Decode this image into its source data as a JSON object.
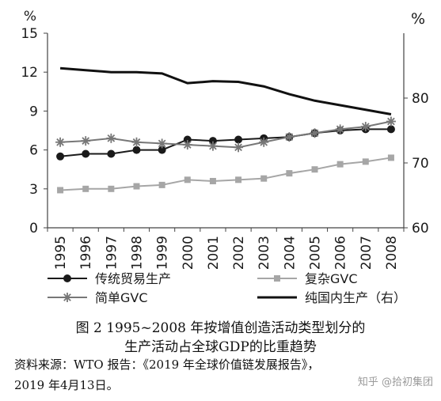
{
  "chart_data": {
    "type": "line",
    "title": "",
    "x": [
      "1995",
      "1996",
      "1997",
      "1998",
      "1999",
      "2000",
      "2001",
      "2002",
      "2003",
      "2004",
      "2005",
      "2006",
      "2007",
      "2008"
    ],
    "left_axis": {
      "unit": "%",
      "ylim": [
        0,
        15
      ],
      "ticks": [
        "0",
        "3",
        "6",
        "9",
        "12",
        "15"
      ]
    },
    "right_axis": {
      "unit": "%",
      "ylim": [
        60,
        90
      ],
      "ticks": [
        "60",
        "70",
        "80"
      ]
    },
    "series": [
      {
        "name": "传统贸易生产",
        "axis": "left",
        "marker": "circle",
        "color": "#1a1a1a",
        "values": [
          5.5,
          5.7,
          5.7,
          6.0,
          6.0,
          6.8,
          6.7,
          6.8,
          6.9,
          7.0,
          7.3,
          7.5,
          7.6,
          7.6
        ]
      },
      {
        "name": "复杂GVC",
        "axis": "left",
        "marker": "square",
        "color": "#a6a6a6",
        "values": [
          2.9,
          3.0,
          3.0,
          3.2,
          3.3,
          3.7,
          3.6,
          3.7,
          3.8,
          4.2,
          4.5,
          4.9,
          5.1,
          5.4
        ]
      },
      {
        "name": "简单GVC",
        "axis": "left",
        "marker": "star",
        "color": "#777777",
        "values": [
          6.6,
          6.7,
          6.9,
          6.6,
          6.5,
          6.4,
          6.3,
          6.2,
          6.6,
          7.0,
          7.3,
          7.6,
          7.8,
          8.2
        ]
      },
      {
        "name": "纯国内生产（右）",
        "axis": "right",
        "marker": "none",
        "color": "#111111",
        "values": [
          84.6,
          84.3,
          84.0,
          84.0,
          83.8,
          82.3,
          82.6,
          82.5,
          81.8,
          80.6,
          79.6,
          78.9,
          78.2,
          77.5
        ]
      }
    ],
    "grid": false,
    "legend": "bottom"
  },
  "caption": {
    "line1": "图 2   1995~2008 年按增值创造活动类型划分的",
    "line2": "生产活动占全球GDP的比重趋势"
  },
  "source": {
    "line1": "资料来源：WTO 报告：《2019 年全球价值链发展报告》，",
    "line2": "2019 年4月13日。"
  },
  "watermark": "知乎 @拾初集团"
}
